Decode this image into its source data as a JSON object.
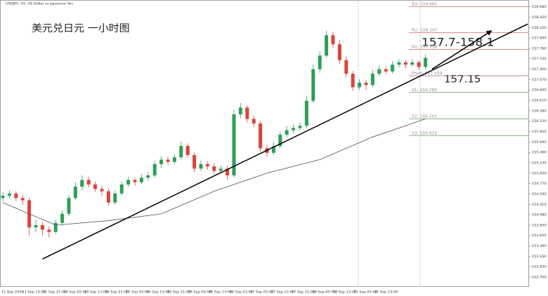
{
  "chart_data": {
    "type": "candlestick",
    "subtitle": "USDJPY, H1:  US Dollar vs Japanese Yen",
    "title": "美元兑日元 一小时图",
    "annotations": [
      "157.7-158.1",
      "157.15"
    ],
    "up_color": "#2f9e5a",
    "down_color": "#d9443a",
    "x_labels": [
      "11 Sep 2026",
      "11 Sep 13:00",
      "11 Sep 21:00",
      "14 Sep 05:00",
      "14 Sep 13:00",
      "14 Sep 21:00",
      "15 Sep 05:00",
      "15 Sep 13:00",
      "15 Sep 21:00",
      "16 Sep 05:00",
      "16 Sep 13:00",
      "16 Sep 21:00",
      "17 Sep 05:00",
      "17 Sep 13:00",
      "17 Sep 21:00",
      "18 Sep 05:00",
      "18 Sep 13:00",
      "21 Sep 05:00",
      "21 Sep 13:00"
    ],
    "candles": [
      [
        154.45,
        154.58,
        154.38,
        154.5
      ],
      [
        154.5,
        154.62,
        154.44,
        154.55
      ],
      [
        154.55,
        154.6,
        154.38,
        154.45
      ],
      [
        154.45,
        154.52,
        154.3,
        154.4
      ],
      [
        154.4,
        154.46,
        153.62,
        153.8
      ],
      [
        153.8,
        153.98,
        153.7,
        153.85
      ],
      [
        153.85,
        153.92,
        153.62,
        153.75
      ],
      [
        153.75,
        153.82,
        153.58,
        153.7
      ],
      [
        153.7,
        153.98,
        153.65,
        153.9
      ],
      [
        153.9,
        154.18,
        153.85,
        154.1
      ],
      [
        154.1,
        154.52,
        154.05,
        154.45
      ],
      [
        154.45,
        154.8,
        154.4,
        154.7
      ],
      [
        154.7,
        154.95,
        154.62,
        154.85
      ],
      [
        154.85,
        154.92,
        154.68,
        154.75
      ],
      [
        154.75,
        154.82,
        154.58,
        154.65
      ],
      [
        154.65,
        154.72,
        154.5,
        154.6
      ],
      [
        154.6,
        154.66,
        154.28,
        154.35
      ],
      [
        154.35,
        154.62,
        154.3,
        154.55
      ],
      [
        154.55,
        154.82,
        154.5,
        154.75
      ],
      [
        154.75,
        154.92,
        154.7,
        154.85
      ],
      [
        154.85,
        154.9,
        154.72,
        154.8
      ],
      [
        154.8,
        154.98,
        154.75,
        154.9
      ],
      [
        154.9,
        155.02,
        154.84,
        154.95
      ],
      [
        154.95,
        155.28,
        154.9,
        155.2
      ],
      [
        155.2,
        155.38,
        155.12,
        155.3
      ],
      [
        155.3,
        155.36,
        155.18,
        155.25
      ],
      [
        155.25,
        155.42,
        155.2,
        155.35
      ],
      [
        155.35,
        155.7,
        155.3,
        155.6
      ],
      [
        155.6,
        155.66,
        155.34,
        155.4
      ],
      [
        155.4,
        155.46,
        155.02,
        155.1
      ],
      [
        155.1,
        155.28,
        155.04,
        155.2
      ],
      [
        155.2,
        155.26,
        155.08,
        155.15
      ],
      [
        155.15,
        155.22,
        154.98,
        155.05
      ],
      [
        155.05,
        155.18,
        154.98,
        155.1
      ],
      [
        155.1,
        155.16,
        154.85,
        154.95
      ],
      [
        154.95,
        156.4,
        154.9,
        156.3
      ],
      [
        156.3,
        156.55,
        156.22,
        156.45
      ],
      [
        156.45,
        156.5,
        156.12,
        156.2
      ],
      [
        156.2,
        156.28,
        156.02,
        156.1
      ],
      [
        156.1,
        156.16,
        155.48,
        155.55
      ],
      [
        155.55,
        155.62,
        155.36,
        155.45
      ],
      [
        155.45,
        155.68,
        155.4,
        155.6
      ],
      [
        155.6,
        155.92,
        155.55,
        155.85
      ],
      [
        155.85,
        156.04,
        155.8,
        155.95
      ],
      [
        155.95,
        156.08,
        155.88,
        156.0
      ],
      [
        156.0,
        156.12,
        155.94,
        156.05
      ],
      [
        156.05,
        156.7,
        156.0,
        156.6
      ],
      [
        156.6,
        157.4,
        156.55,
        157.3
      ],
      [
        157.3,
        157.7,
        157.22,
        157.6
      ],
      [
        157.6,
        158.15,
        157.55,
        158.05
      ],
      [
        158.05,
        158.12,
        157.78,
        157.85
      ],
      [
        157.85,
        157.95,
        157.42,
        157.5
      ],
      [
        157.5,
        157.58,
        157.12,
        157.2
      ],
      [
        157.2,
        157.26,
        156.82,
        156.9
      ],
      [
        156.9,
        157.08,
        156.84,
        157.0
      ],
      [
        157.0,
        157.06,
        156.85,
        156.95
      ],
      [
        156.95,
        157.28,
        156.9,
        157.2
      ],
      [
        157.2,
        157.38,
        157.14,
        157.3
      ],
      [
        157.3,
        157.36,
        157.18,
        157.25
      ],
      [
        157.25,
        157.48,
        157.2,
        157.4
      ],
      [
        157.4,
        157.52,
        157.34,
        157.45
      ],
      [
        157.45,
        157.5,
        157.32,
        157.4
      ],
      [
        157.4,
        157.52,
        157.35,
        157.45
      ],
      [
        157.45,
        157.5,
        157.28,
        157.35
      ],
      [
        157.35,
        157.62,
        157.3,
        157.55
      ]
    ],
    "ma": {
      "color": "#555555",
      "x": [
        0,
        8,
        16,
        24,
        32,
        40,
        48,
        56,
        64
      ],
      "values": [
        154.35,
        153.85,
        153.95,
        154.1,
        154.6,
        155.0,
        155.3,
        155.8,
        156.2
      ]
    },
    "trendlines": [
      {
        "from": [
          6,
          153.1
        ],
        "to": [
          79.5,
          158.3
        ],
        "arrow": false
      },
      {
        "from": [
          65,
          157.3
        ],
        "to": [
          74,
          158.15
        ],
        "arrow": true
      }
    ],
    "levels": [
      {
        "label": "R3: 158.681",
        "value": 158.681,
        "color": "#e06666"
      },
      {
        "label": "R2: 158.107",
        "value": 158.107,
        "color": "#e06666"
      },
      {
        "label": "R1: 157.738",
        "value": 157.738,
        "color": "#e06666"
      },
      {
        "label": "Pivot: 157.154",
        "value": 157.154,
        "color": "#b05080"
      },
      {
        "label": "S1: 156.785",
        "value": 156.785,
        "color": "#5a9e5a"
      },
      {
        "label": "S2: 156.201",
        "value": 156.201,
        "color": "#5a9e5a"
      },
      {
        "label": "S3: 155.832",
        "value": 155.832,
        "color": "#5a9e5a"
      }
    ],
    "ylim": [
      152.5,
      158.83
    ],
    "yticks": [
      {
        "value": 152.7,
        "label": "152.700"
      },
      {
        "value": 152.93,
        "label": "152.930"
      },
      {
        "value": 153.16,
        "label": "153.160"
      },
      {
        "value": 153.39,
        "label": "153.390"
      },
      {
        "value": 153.62,
        "label": "153.620"
      },
      {
        "value": 153.85,
        "label": "153.850"
      },
      {
        "value": 154.08,
        "label": "154.080"
      },
      {
        "value": 154.31,
        "label": "154.310"
      },
      {
        "value": 154.54,
        "label": "154.540"
      },
      {
        "value": 154.77,
        "label": "154.770"
      },
      {
        "value": 155.0,
        "label": "155.000"
      },
      {
        "value": 155.23,
        "label": "155.230"
      },
      {
        "value": 155.46,
        "label": "155.460"
      },
      {
        "value": 155.69,
        "label": "155.690"
      },
      {
        "value": 155.92,
        "label": "155.920"
      },
      {
        "value": 156.15,
        "label": "156.150"
      },
      {
        "value": 156.38,
        "label": "156.380"
      },
      {
        "value": 156.61,
        "label": "156.610"
      },
      {
        "value": 156.84,
        "label": "156.840"
      },
      {
        "value": 157.07,
        "label": "157.070"
      },
      {
        "value": 157.3,
        "label": "157.300"
      },
      {
        "value": 157.53,
        "label": "157.530"
      },
      {
        "value": 157.76,
        "label": "157.760"
      },
      {
        "value": 157.99,
        "label": "157.990"
      },
      {
        "value": 158.22,
        "label": "158.220"
      },
      {
        "value": 158.45,
        "label": "158.450"
      },
      {
        "value": 158.68,
        "label": "158.680"
      }
    ]
  }
}
